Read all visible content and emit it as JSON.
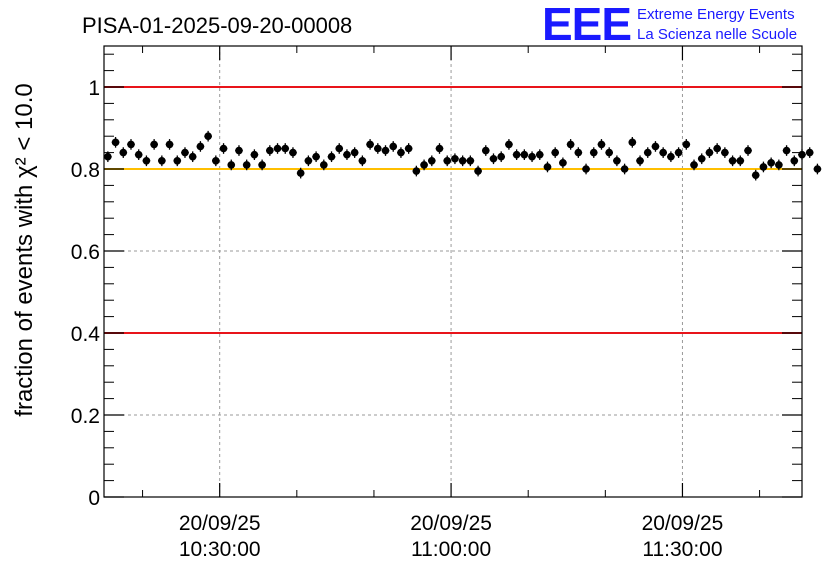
{
  "chart_data": {
    "type": "scatter",
    "title": "PISA-01-2025-09-20-00008",
    "ylabel": "fraction of events with χ² < 10.0",
    "ylim": [
      0,
      1.1
    ],
    "xlim": [
      "10:15:00",
      "11:45:30"
    ],
    "x_ticks": [
      {
        "date": "20/09/25",
        "time": "10:30:00"
      },
      {
        "date": "20/09/25",
        "time": "11:00:00"
      },
      {
        "date": "20/09/25",
        "time": "11:30:00"
      }
    ],
    "y_ticks": [
      "0",
      "0.2",
      "0.4",
      "0.6",
      "0.8",
      "1"
    ],
    "grid": true,
    "reference_lines": [
      {
        "y": 1.0,
        "color": "#e8141a"
      },
      {
        "y": 0.8,
        "color": "#ffbf00"
      },
      {
        "y": 0.4,
        "color": "#e8141a"
      }
    ],
    "error": 0.013,
    "x_start": "10:15:00",
    "x_step_minutes": 1,
    "values": [
      0.83,
      0.865,
      0.84,
      0.86,
      0.835,
      0.82,
      0.86,
      0.82,
      0.86,
      0.82,
      0.84,
      0.83,
      0.855,
      0.88,
      0.82,
      0.85,
      0.81,
      0.845,
      0.81,
      0.835,
      0.81,
      0.845,
      0.85,
      0.85,
      0.84,
      0.79,
      0.82,
      0.83,
      0.81,
      0.83,
      0.85,
      0.835,
      0.84,
      0.82,
      0.86,
      0.85,
      0.845,
      0.855,
      0.84,
      0.85,
      0.795,
      0.81,
      0.82,
      0.85,
      0.82,
      0.825,
      0.82,
      0.82,
      0.795,
      0.845,
      0.825,
      0.83,
      0.86,
      0.835,
      0.835,
      0.83,
      0.835,
      0.805,
      0.84,
      0.815,
      0.86,
      0.84,
      0.8,
      0.84,
      0.86,
      0.84,
      0.82,
      0.8,
      0.865,
      0.82,
      0.84,
      0.855,
      0.84,
      0.83,
      0.84,
      0.86,
      0.81,
      0.825,
      0.84,
      0.85,
      0.84,
      0.82,
      0.82,
      0.845,
      0.785,
      0.805,
      0.815,
      0.81,
      0.845,
      0.82,
      0.835,
      0.84,
      0.8
    ]
  },
  "logo": {
    "mark": "EEE",
    "line1": "Extreme Energy Events",
    "line2": "La Scienza nelle Scuole"
  }
}
